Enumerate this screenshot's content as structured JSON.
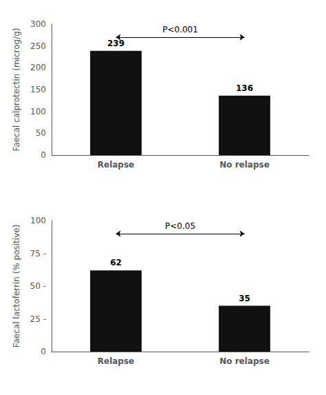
{
  "chart_data": [
    {
      "type": "bar",
      "categories": [
        "Relapse",
        "No relapse"
      ],
      "values": [
        239,
        136
      ],
      "ylabel": "Faecal calprotectin (microg/g)",
      "ylim": [
        0,
        300
      ],
      "yticks": [
        0,
        50,
        100,
        150,
        200,
        250,
        300
      ],
      "color": "#111111",
      "data_labels": true,
      "annotation": "P<0.001",
      "grid": false
    },
    {
      "type": "bar",
      "categories": [
        "Relapse",
        "No relapse"
      ],
      "values": [
        62,
        35
      ],
      "ylabel": "Faecal lactoferrin (% positive)",
      "ylim": [
        0,
        100
      ],
      "yticks": [
        0,
        {
          "value": 25,
          "label": "25 -"
        },
        {
          "value": 50,
          "label": "50 -"
        },
        {
          "value": 75,
          "label": "75 -"
        },
        100
      ],
      "color": "#111111",
      "data_labels": true,
      "annotation": "P<0.05",
      "grid": false
    }
  ]
}
